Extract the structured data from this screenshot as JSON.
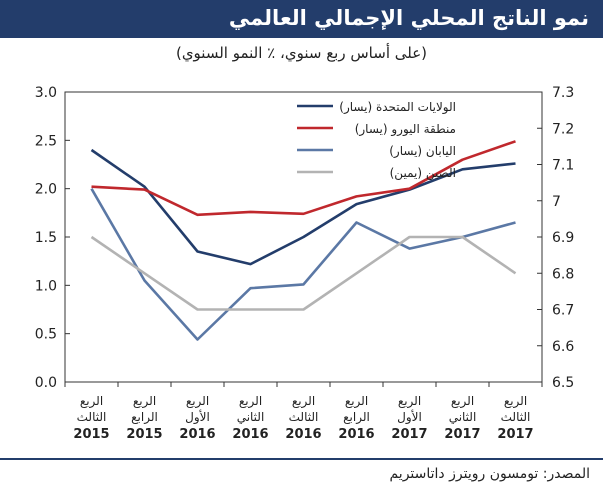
{
  "title": "نمو الناتج المحلي الإجمالي العالمي",
  "subtitle": "(على أساس ربع سنوي، ٪ النمو السنوي)",
  "source": "المصدر: تومسون رويترز داتاستريم",
  "colors": {
    "title_bar": "#233d6b",
    "us": "#233d6b",
    "euro": "#c0282d",
    "japan": "#5b78a5",
    "china": "#b3b3b3"
  },
  "chart_data": {
    "type": "line",
    "categories": [
      [
        "الربع",
        "الثالث",
        "2015"
      ],
      [
        "الربع",
        "الرابع",
        "2015"
      ],
      [
        "الربع",
        "الأول",
        "2016"
      ],
      [
        "الربع",
        "الثاني",
        "2016"
      ],
      [
        "الربع",
        "الثالث",
        "2016"
      ],
      [
        "الربع",
        "الرابع",
        "2016"
      ],
      [
        "الربع",
        "الأول",
        "2017"
      ],
      [
        "الربع",
        "الثاني",
        "2017"
      ],
      [
        "الربع",
        "الثالث",
        "2017"
      ]
    ],
    "left_axis": {
      "ylim": [
        0,
        3
      ],
      "ticks": [
        "0.0",
        "0.5",
        "1.0",
        "1.5",
        "2.0",
        "2.5",
        "3.0"
      ]
    },
    "right_axis": {
      "ylim": [
        6.5,
        7.3
      ],
      "ticks": [
        "6.5",
        "6.6",
        "6.7",
        "6.8",
        "6.9",
        "7",
        "7.1",
        "7.2",
        "7.3"
      ]
    },
    "legend_position": "top-right",
    "series": [
      {
        "name": "الولايات المتحدة (يسار)",
        "axis": "left",
        "color": "#233d6b",
        "values": [
          2.4,
          2.02,
          1.35,
          1.22,
          1.5,
          1.84,
          1.99,
          2.2,
          2.26
        ]
      },
      {
        "name": "منطقة اليورو (يسار)",
        "axis": "left",
        "color": "#c0282d",
        "values": [
          2.02,
          1.99,
          1.73,
          1.76,
          1.74,
          1.92,
          2.0,
          2.3,
          2.49
        ]
      },
      {
        "name": "اليابان (يسار)",
        "axis": "left",
        "color": "#5b78a5",
        "values": [
          2.0,
          1.05,
          0.44,
          0.97,
          1.01,
          1.65,
          1.38,
          1.5,
          1.65
        ]
      },
      {
        "name": "الصين (يمين)",
        "axis": "right",
        "color": "#b3b3b3",
        "values": [
          6.9,
          6.8,
          6.7,
          6.7,
          6.7,
          6.8,
          6.9,
          6.9,
          6.8
        ]
      }
    ]
  }
}
